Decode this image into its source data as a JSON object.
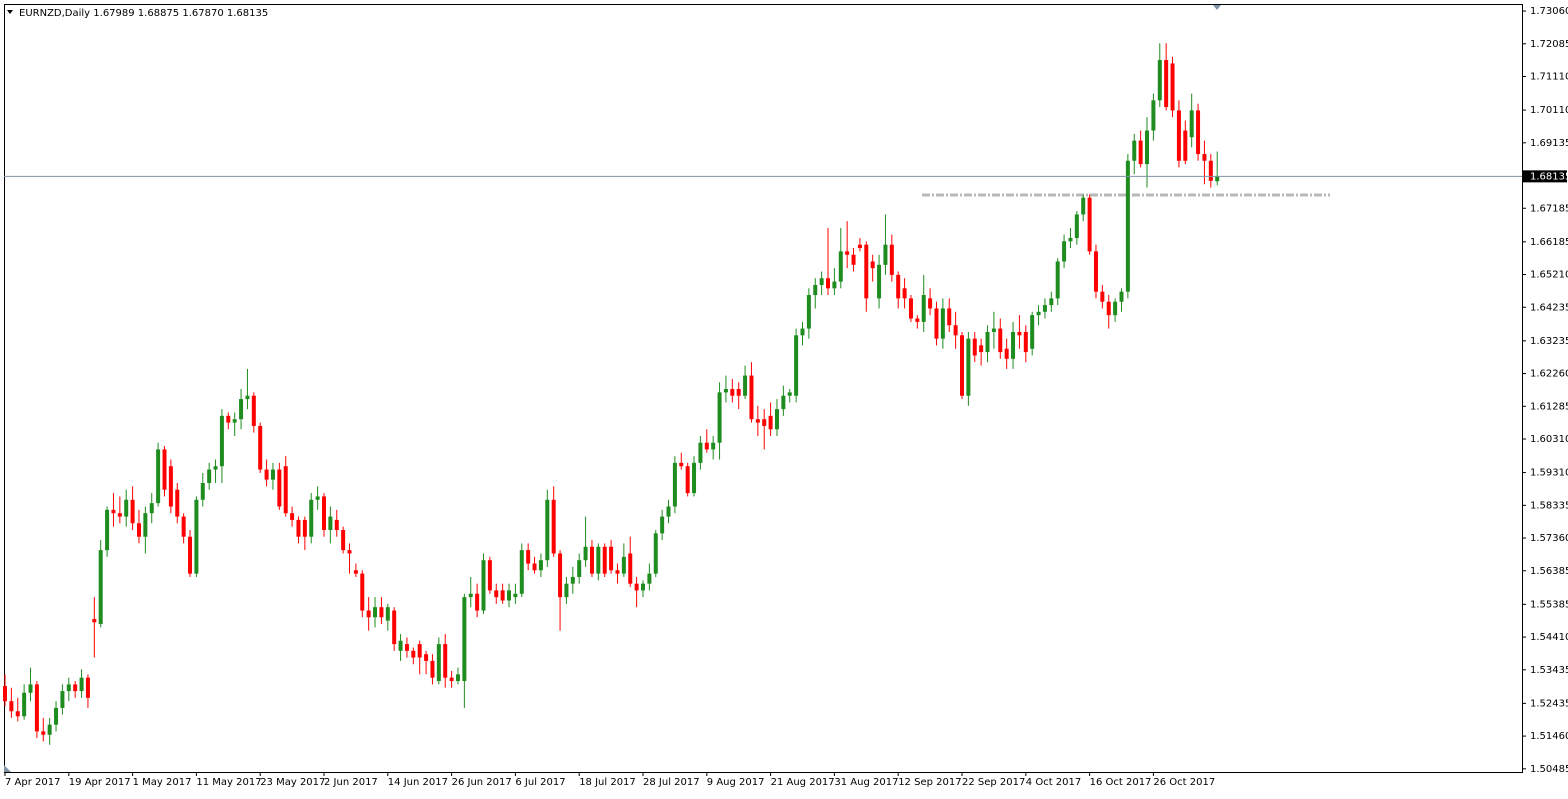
{
  "chart_data": {
    "type": "candlestick",
    "title": "EURNZD,Daily  1.67989 1.68875 1.67870 1.68135",
    "up_color": "#1e8c1e",
    "down_color": "#ff0000",
    "current_price": 1.68135,
    "current_price_color": "#7f93a8",
    "level": 1.6758,
    "level_color": "#b8b8b8",
    "ylim": [
      1.5039,
      1.7327
    ],
    "yticks": [
      {
        "value": 1.7306,
        "label": "1.73060"
      },
      1.72085,
      {
        "value": 1.7111,
        "label": "1.71110"
      },
      {
        "value": 1.7011,
        "label": "1.70110"
      },
      1.69135,
      1.67185,
      1.66185,
      {
        "value": 1.6521,
        "label": "1.65210"
      },
      1.64235,
      1.63235,
      {
        "value": 1.6226,
        "label": "1.62260"
      },
      1.61285,
      {
        "value": 1.6031,
        "label": "1.60310"
      },
      {
        "value": 1.5931,
        "label": "1.59310"
      },
      1.58335,
      {
        "value": 1.5736,
        "label": "1.57360"
      },
      1.56385,
      1.55385,
      {
        "value": 1.5441,
        "label": "1.54410"
      },
      1.53435,
      1.52435,
      {
        "value": 1.5146,
        "label": "1.51460"
      },
      1.50485
    ],
    "categories": [
      "7 Apr 2017",
      null,
      null,
      null,
      null,
      null,
      null,
      null,
      null,
      null,
      "19 Apr 2017",
      null,
      null,
      null,
      null,
      null,
      null,
      null,
      null,
      null,
      "1 May 2017",
      null,
      null,
      null,
      null,
      null,
      null,
      null,
      null,
      null,
      "11 May 2017",
      null,
      null,
      null,
      null,
      null,
      null,
      null,
      null,
      null,
      "23 May 2017",
      null,
      null,
      null,
      null,
      null,
      null,
      null,
      null,
      null,
      "2 Jun 2017",
      null,
      null,
      null,
      null,
      null,
      null,
      null,
      null,
      null,
      "14 Jun 2017",
      null,
      null,
      null,
      null,
      null,
      null,
      null,
      null,
      null,
      "26 Jun 2017",
      null,
      null,
      null,
      null,
      null,
      null,
      null,
      null,
      null,
      "6 Jul 2017",
      null,
      null,
      null,
      null,
      null,
      null,
      null,
      null,
      null,
      "18 Jul 2017",
      null,
      null,
      null,
      null,
      null,
      null,
      null,
      null,
      null,
      "28 Jul 2017",
      null,
      null,
      null,
      null,
      null,
      null,
      null,
      null,
      null,
      "9 Aug 2017",
      null,
      null,
      null,
      null,
      null,
      null,
      null,
      null,
      null,
      "21 Aug 2017",
      null,
      null,
      null,
      null,
      null,
      null,
      null,
      null,
      null,
      "31 Aug 2017",
      null,
      null,
      null,
      null,
      null,
      null,
      null,
      null,
      null,
      "12 Sep 2017",
      null,
      null,
      null,
      null,
      null,
      null,
      null,
      null,
      null,
      "22 Sep 2017",
      null,
      null,
      null,
      null,
      null,
      null,
      null,
      null,
      null,
      "4 Oct 2017",
      null,
      null,
      null,
      null,
      null,
      null,
      null,
      null,
      null,
      "16 Oct 2017",
      null,
      null,
      null,
      null,
      null,
      null,
      null,
      null,
      null,
      "26 Oct 2017",
      null,
      null,
      null,
      null,
      null,
      null,
      null,
      null,
      null,
      null
    ],
    "ohlc": [
      [
        1.5295,
        1.533,
        1.5235,
        1.525
      ],
      [
        1.525,
        1.529,
        1.52,
        1.522
      ],
      [
        1.522,
        1.526,
        1.519,
        1.5205
      ],
      [
        1.5205,
        1.53,
        1.5195,
        1.5275
      ],
      [
        1.5275,
        1.535,
        1.525,
        1.53
      ],
      [
        1.53,
        1.531,
        1.514,
        1.516
      ],
      [
        1.516,
        1.52,
        1.513,
        1.515
      ],
      [
        1.515,
        1.52,
        1.512,
        1.518
      ],
      [
        1.518,
        1.525,
        1.516,
        1.523
      ],
      [
        1.523,
        1.53,
        1.521,
        1.528
      ],
      [
        1.528,
        1.532,
        1.525,
        1.53
      ],
      [
        1.53,
        1.531,
        1.526,
        1.528
      ],
      [
        1.528,
        1.5345,
        1.526,
        1.532
      ],
      [
        1.532,
        1.533,
        1.523,
        1.526
      ],
      [
        1.5495,
        1.556,
        1.538,
        1.5485
      ],
      [
        1.548,
        1.573,
        1.547,
        1.57
      ],
      [
        1.57,
        1.583,
        1.568,
        1.582
      ],
      [
        1.582,
        1.587,
        1.577,
        1.581
      ],
      [
        1.581,
        1.586,
        1.578,
        1.58
      ],
      [
        1.58,
        1.588,
        1.577,
        1.585
      ],
      [
        1.585,
        1.589,
        1.576,
        1.578
      ],
      [
        1.578,
        1.582,
        1.572,
        1.574
      ],
      [
        1.574,
        1.583,
        1.569,
        1.581
      ],
      [
        1.581,
        1.587,
        1.578,
        1.584
      ],
      [
        1.584,
        1.602,
        1.583,
        1.6
      ],
      [
        1.6,
        1.601,
        1.586,
        1.588
      ],
      [
        1.595,
        1.597,
        1.581,
        1.583
      ],
      [
        1.588,
        1.59,
        1.578,
        1.58
      ],
      [
        1.58,
        1.581,
        1.572,
        1.574
      ],
      [
        1.574,
        1.576,
        1.562,
        1.563
      ],
      [
        1.563,
        1.586,
        1.562,
        1.585
      ],
      [
        1.585,
        1.593,
        1.583,
        1.59
      ],
      [
        1.59,
        1.596,
        1.588,
        1.594
      ],
      [
        1.594,
        1.597,
        1.59,
        1.595
      ],
      [
        1.595,
        1.612,
        1.59,
        1.61
      ],
      [
        1.61,
        1.611,
        1.606,
        1.608
      ],
      [
        1.608,
        1.611,
        1.604,
        1.609
      ],
      [
        1.609,
        1.618,
        1.606,
        1.615
      ],
      [
        1.615,
        1.624,
        1.612,
        1.616
      ],
      [
        1.616,
        1.617,
        1.605,
        1.607
      ],
      [
        1.607,
        1.608,
        1.593,
        1.594
      ],
      [
        1.594,
        1.597,
        1.589,
        1.591
      ],
      [
        1.591,
        1.596,
        1.588,
        1.594
      ],
      [
        1.594,
        1.596,
        1.582,
        1.583
      ],
      [
        1.595,
        1.598,
        1.58,
        1.581
      ],
      [
        1.581,
        1.583,
        1.577,
        1.579
      ],
      [
        1.579,
        1.58,
        1.572,
        1.574
      ],
      [
        1.579,
        1.58,
        1.57,
        1.574
      ],
      [
        1.574,
        1.587,
        1.572,
        1.585
      ],
      [
        1.585,
        1.589,
        1.582,
        1.586
      ],
      [
        1.586,
        1.587,
        1.574,
        1.576
      ],
      [
        1.576,
        1.583,
        1.572,
        1.58
      ],
      [
        1.579,
        1.582,
        1.574,
        1.576
      ],
      [
        1.576,
        1.577,
        1.569,
        1.57
      ],
      [
        1.57,
        1.572,
        1.563,
        1.569
      ],
      [
        1.564,
        1.566,
        1.562,
        1.563
      ],
      [
        1.563,
        1.564,
        1.55,
        1.552
      ],
      [
        1.552,
        1.556,
        1.546,
        1.55
      ],
      [
        1.55,
        1.556,
        1.547,
        1.553
      ],
      [
        1.553,
        1.556,
        1.548,
        1.55
      ],
      [
        1.549,
        1.554,
        1.546,
        1.553
      ],
      [
        1.552,
        1.553,
        1.54,
        1.542
      ],
      [
        1.54,
        1.545,
        1.537,
        1.543
      ],
      [
        1.542,
        1.544,
        1.538,
        1.54
      ],
      [
        1.54,
        1.541,
        1.536,
        1.538
      ],
      [
        1.542,
        1.543,
        1.533,
        1.538
      ],
      [
        1.539,
        1.54,
        1.533,
        1.537
      ],
      [
        1.537,
        1.539,
        1.53,
        1.532
      ],
      [
        1.531,
        1.544,
        1.53,
        1.542
      ],
      [
        1.542,
        1.545,
        1.529,
        1.532
      ],
      [
        1.532,
        1.534,
        1.529,
        1.531
      ],
      [
        1.531,
        1.535,
        1.53,
        1.533
      ],
      [
        1.531,
        1.557,
        1.523,
        1.556
      ],
      [
        1.556,
        1.562,
        1.553,
        1.557
      ],
      [
        1.557,
        1.56,
        1.55,
        1.552
      ],
      [
        1.552,
        1.569,
        1.551,
        1.567
      ],
      [
        1.567,
        1.568,
        1.557,
        1.558
      ],
      [
        1.558,
        1.56,
        1.554,
        1.556
      ],
      [
        1.558,
        1.56,
        1.554,
        1.555
      ],
      [
        1.555,
        1.56,
        1.553,
        1.558
      ],
      [
        1.556,
        1.56,
        1.554,
        1.557
      ],
      [
        1.557,
        1.572,
        1.556,
        1.57
      ],
      [
        1.57,
        1.572,
        1.564,
        1.566
      ],
      [
        1.566,
        1.568,
        1.563,
        1.564
      ],
      [
        1.564,
        1.569,
        1.562,
        1.567
      ],
      [
        1.567,
        1.588,
        1.565,
        1.585
      ],
      [
        1.585,
        1.589,
        1.568,
        1.569
      ],
      [
        1.569,
        1.57,
        1.546,
        1.556
      ],
      [
        1.556,
        1.562,
        1.554,
        1.56
      ],
      [
        1.56,
        1.565,
        1.557,
        1.562
      ],
      [
        1.562,
        1.569,
        1.56,
        1.567
      ],
      [
        1.567,
        1.58,
        1.565,
        1.571
      ],
      [
        1.571,
        1.573,
        1.562,
        1.563
      ],
      [
        1.563,
        1.572,
        1.561,
        1.571
      ],
      [
        1.571,
        1.572,
        1.562,
        1.563
      ],
      [
        1.571,
        1.573,
        1.563,
        1.564
      ],
      [
        1.564,
        1.566,
        1.56,
        1.563
      ],
      [
        1.563,
        1.572,
        1.562,
        1.568
      ],
      [
        1.569,
        1.574,
        1.559,
        1.56
      ],
      [
        1.56,
        1.562,
        1.553,
        1.558
      ],
      [
        1.558,
        1.561,
        1.556,
        1.56
      ],
      [
        1.56,
        1.566,
        1.558,
        1.563
      ],
      [
        1.563,
        1.576,
        1.562,
        1.575
      ],
      [
        1.575,
        1.582,
        1.573,
        1.58
      ],
      [
        1.58,
        1.585,
        1.578,
        1.583
      ],
      [
        1.583,
        1.598,
        1.581,
        1.596
      ],
      [
        1.596,
        1.599,
        1.594,
        1.595
      ],
      [
        1.595,
        1.596,
        1.586,
        1.587
      ],
      [
        1.587,
        1.598,
        1.586,
        1.596
      ],
      [
        1.596,
        1.604,
        1.594,
        1.602
      ],
      [
        1.602,
        1.606,
        1.599,
        1.6
      ],
      [
        1.6,
        1.604,
        1.597,
        1.602
      ],
      [
        1.602,
        1.62,
        1.597,
        1.617
      ],
      [
        1.617,
        1.622,
        1.614,
        1.618
      ],
      [
        1.618,
        1.621,
        1.614,
        1.616
      ],
      [
        1.618,
        1.62,
        1.612,
        1.616
      ],
      [
        1.616,
        1.625,
        1.615,
        1.622
      ],
      [
        1.622,
        1.626,
        1.608,
        1.609
      ],
      [
        1.609,
        1.613,
        1.604,
        1.608
      ],
      [
        1.609,
        1.612,
        1.6,
        1.607
      ],
      [
        1.61,
        1.614,
        1.604,
        1.606
      ],
      [
        1.606,
        1.615,
        1.604,
        1.612
      ],
      [
        1.612,
        1.619,
        1.61,
        1.616
      ],
      [
        1.616,
        1.618,
        1.614,
        1.617
      ],
      [
        1.616,
        1.636,
        1.614,
        1.634
      ],
      [
        1.634,
        1.638,
        1.631,
        1.636
      ],
      [
        1.636,
        1.648,
        1.633,
        1.646
      ],
      [
        1.646,
        1.651,
        1.642,
        1.649
      ],
      [
        1.649,
        1.653,
        1.646,
        1.651
      ],
      [
        1.651,
        1.666,
        1.646,
        1.648
      ],
      [
        1.648,
        1.654,
        1.646,
        1.65
      ],
      [
        1.65,
        1.666,
        1.648,
        1.659
      ],
      [
        1.659,
        1.668,
        1.654,
        1.658
      ],
      [
        1.658,
        1.66,
        1.653,
        1.655
      ],
      [
        1.661,
        1.663,
        1.659,
        1.66
      ],
      [
        1.661,
        1.662,
        1.641,
        1.645
      ],
      [
        1.656,
        1.658,
        1.65,
        1.654
      ],
      [
        1.645,
        1.658,
        1.642,
        1.655
      ],
      [
        1.655,
        1.67,
        1.652,
        1.661
      ],
      [
        1.661,
        1.664,
        1.65,
        1.652
      ],
      [
        1.652,
        1.653,
        1.642,
        1.645
      ],
      [
        1.648,
        1.651,
        1.642,
        1.645
      ],
      [
        1.645,
        1.646,
        1.638,
        1.639
      ],
      [
        1.639,
        1.64,
        1.636,
        1.638
      ],
      [
        1.638,
        1.652,
        1.635,
        1.646
      ],
      [
        1.645,
        1.648,
        1.64,
        1.642
      ],
      [
        1.642,
        1.644,
        1.631,
        1.633
      ],
      [
        1.633,
        1.645,
        1.63,
        1.642
      ],
      [
        1.642,
        1.645,
        1.635,
        1.637
      ],
      [
        1.637,
        1.641,
        1.63,
        1.634
      ],
      [
        1.634,
        1.635,
        1.615,
        1.616
      ],
      [
        1.616,
        1.635,
        1.613,
        1.633
      ],
      [
        1.633,
        1.635,
        1.626,
        1.628
      ],
      [
        1.631,
        1.633,
        1.625,
        1.629
      ],
      [
        1.629,
        1.637,
        1.626,
        1.635
      ],
      [
        1.635,
        1.641,
        1.63,
        1.636
      ],
      [
        1.636,
        1.639,
        1.627,
        1.629
      ],
      [
        1.63,
        1.633,
        1.624,
        1.627
      ],
      [
        1.627,
        1.638,
        1.624,
        1.635
      ],
      [
        1.635,
        1.64,
        1.63,
        1.634
      ],
      [
        1.635,
        1.637,
        1.626,
        1.629
      ],
      [
        1.63,
        1.641,
        1.628,
        1.64
      ],
      [
        1.64,
        1.643,
        1.637,
        1.641
      ],
      [
        1.641,
        1.645,
        1.639,
        1.643
      ],
      [
        1.643,
        1.647,
        1.641,
        1.645
      ],
      [
        1.645,
        1.657,
        1.643,
        1.656
      ],
      [
        1.656,
        1.664,
        1.654,
        1.662
      ],
      [
        1.662,
        1.666,
        1.66,
        1.663
      ],
      [
        1.663,
        1.671,
        1.661,
        1.67
      ],
      [
        1.67,
        1.676,
        1.668,
        1.675
      ],
      [
        1.675,
        1.676,
        1.658,
        1.659
      ],
      [
        1.659,
        1.661,
        1.645,
        1.647
      ],
      [
        1.647,
        1.649,
        1.642,
        1.644
      ],
      [
        1.644,
        1.646,
        1.636,
        1.64
      ],
      [
        1.64,
        1.645,
        1.638,
        1.644
      ],
      [
        1.644,
        1.648,
        1.641,
        1.647
      ],
      [
        1.647,
        1.688,
        1.645,
        1.686
      ],
      [
        1.686,
        1.694,
        1.682,
        1.692
      ],
      [
        1.692,
        1.695,
        1.684,
        1.685
      ],
      [
        1.685,
        1.699,
        1.678,
        1.695
      ],
      [
        1.695,
        1.706,
        1.692,
        1.704
      ],
      [
        1.704,
        1.721,
        1.702,
        1.716
      ],
      [
        1.716,
        1.721,
        1.701,
        1.702
      ],
      [
        1.715,
        1.717,
        1.699,
        1.701
      ],
      [
        1.701,
        1.704,
        1.684,
        1.686
      ],
      [
        1.695,
        1.698,
        1.685,
        1.686
      ],
      [
        1.693,
        1.706,
        1.69,
        1.701
      ],
      [
        1.701,
        1.703,
        1.686,
        1.688
      ],
      [
        1.688,
        1.692,
        1.679,
        1.686
      ],
      [
        1.686,
        1.688,
        1.678,
        1.68
      ],
      [
        1.67989,
        1.68875,
        1.6787,
        1.68135
      ]
    ]
  }
}
